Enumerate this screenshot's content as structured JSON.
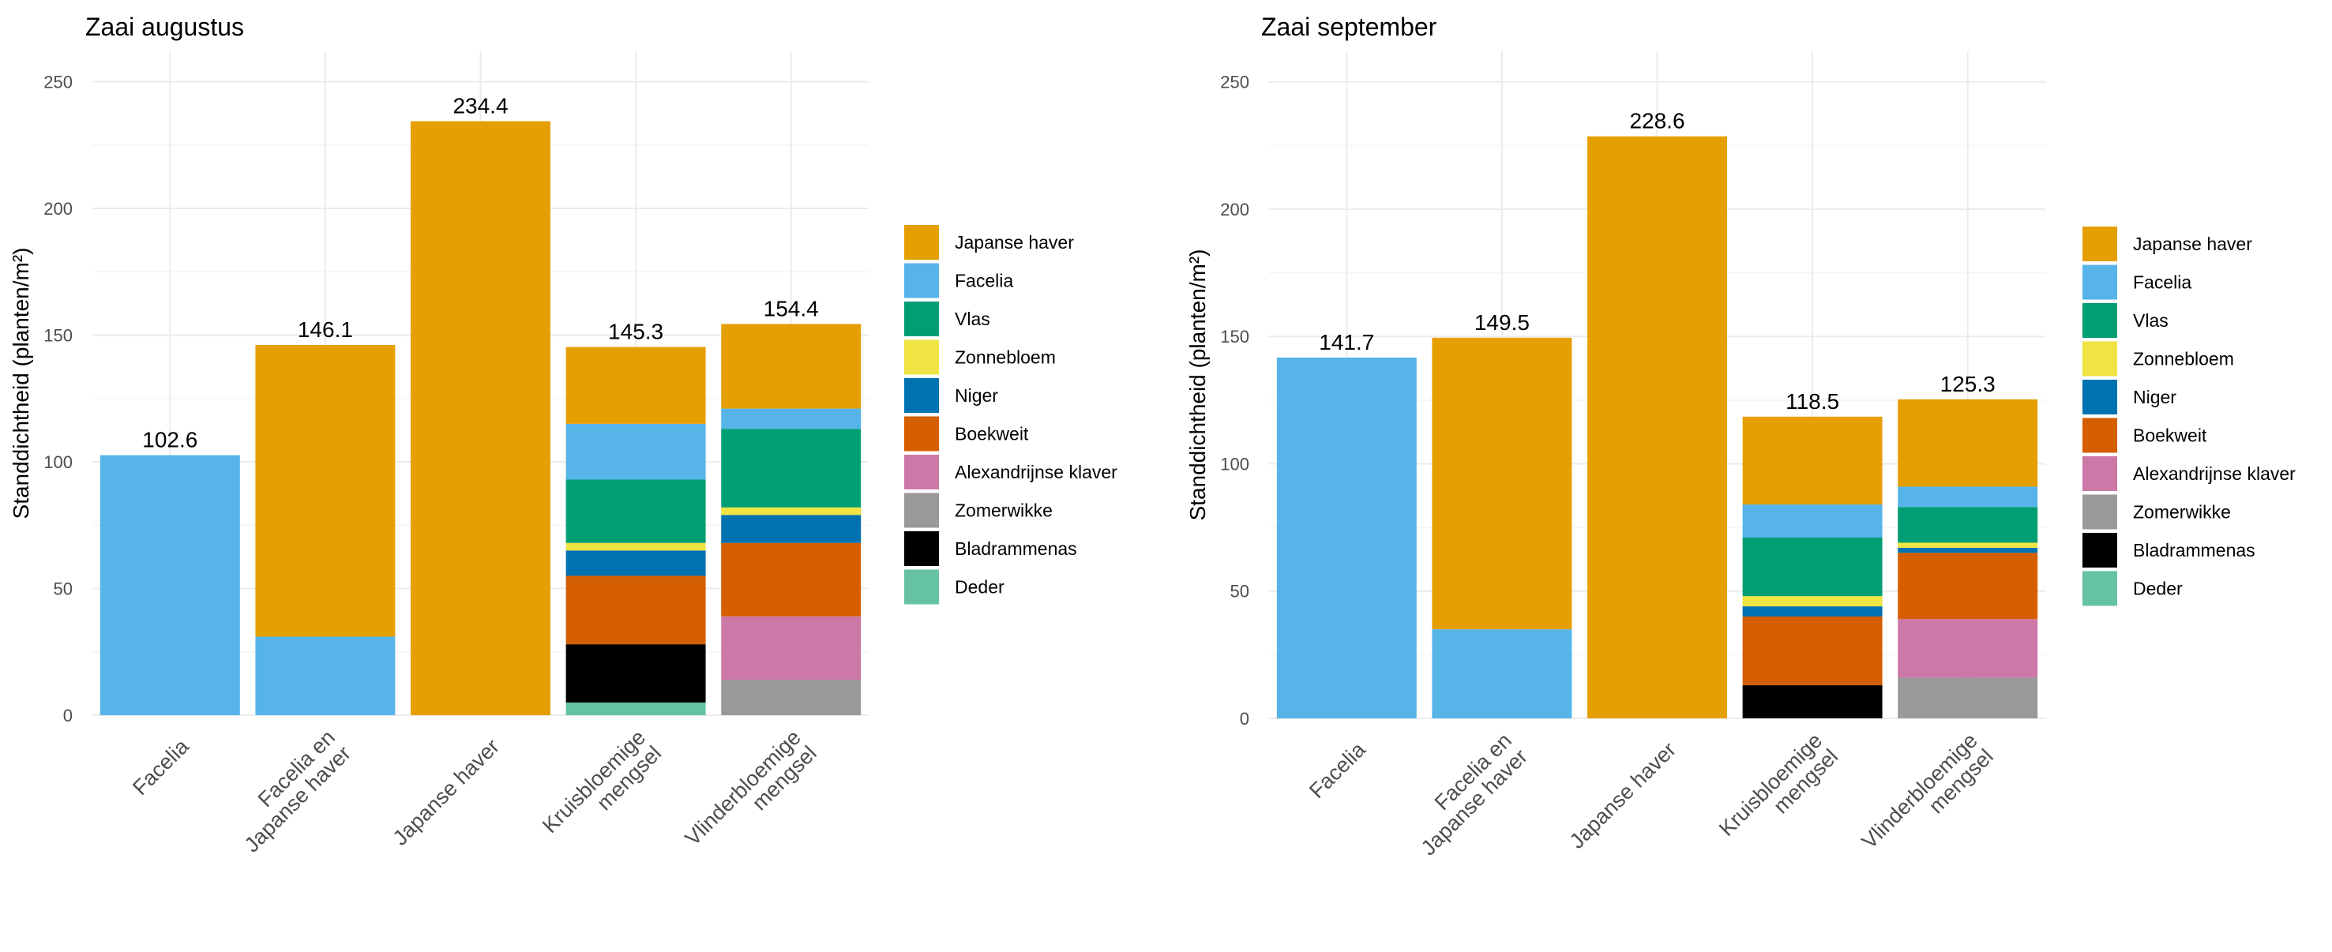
{
  "chart_data": [
    {
      "type": "bar",
      "stacked": true,
      "title": "Zaai augustus",
      "xlabel": "",
      "ylabel": "Standdichtheid (planten/m²)",
      "ylim": [
        0,
        262
      ],
      "yticks": [
        0,
        50,
        100,
        150,
        200,
        250
      ],
      "grid": true,
      "legend_position": "right",
      "categories": [
        [
          "Facelia"
        ],
        [
          "Facelia en",
          "Japanse haver"
        ],
        [
          "Japanse haver"
        ],
        [
          "Kruisbloemige",
          "mengsel"
        ],
        [
          "Vlinderbloemige",
          "mengsel"
        ]
      ],
      "totals": [
        "102.6",
        "146.1",
        "234.4",
        "145.3",
        "154.4"
      ],
      "series": [
        {
          "name": "Deder",
          "color": "#66C2A5",
          "values": [
            0,
            0,
            0,
            5,
            0
          ]
        },
        {
          "name": "Bladrammenas",
          "color": "#000000",
          "values": [
            0,
            0,
            0,
            23,
            0
          ]
        },
        {
          "name": "Zomerwikke",
          "color": "#999999",
          "values": [
            0,
            0,
            0,
            0,
            14
          ]
        },
        {
          "name": "Alexandrijnse klaver",
          "color": "#CC79A7",
          "values": [
            0,
            0,
            0,
            0,
            25
          ]
        },
        {
          "name": "Boekweit",
          "color": "#D55E00",
          "values": [
            0,
            0,
            0,
            27,
            29
          ]
        },
        {
          "name": "Niger",
          "color": "#0072B2",
          "values": [
            0,
            0,
            0,
            10,
            11
          ]
        },
        {
          "name": "Zonnebloem",
          "color": "#F0E442",
          "values": [
            0,
            0,
            0,
            3,
            3
          ]
        },
        {
          "name": "Vlas",
          "color": "#009E73",
          "values": [
            0,
            0,
            0,
            25,
            31
          ]
        },
        {
          "name": "Facelia",
          "color": "#56B4E9",
          "values": [
            102.6,
            31,
            0,
            22,
            8
          ]
        },
        {
          "name": "Japanse haver",
          "color": "#E69F00",
          "values": [
            0,
            115.1,
            234.4,
            30.3,
            33.4
          ]
        }
      ]
    },
    {
      "type": "bar",
      "stacked": true,
      "title": "Zaai september",
      "xlabel": "",
      "ylabel": "Standdichtheid (planten/m²)",
      "ylim": [
        0,
        262
      ],
      "yticks": [
        0,
        50,
        100,
        150,
        200,
        250
      ],
      "grid": true,
      "legend_position": "right",
      "categories": [
        [
          "Facelia"
        ],
        [
          "Facelia en",
          "Japanse haver"
        ],
        [
          "Japanse haver"
        ],
        [
          "Kruisbloemige",
          "mengsel"
        ],
        [
          "Vlinderbloemige",
          "mengsel"
        ]
      ],
      "totals": [
        "141.7",
        "149.5",
        "228.6",
        "118.5",
        "125.3"
      ],
      "series": [
        {
          "name": "Deder",
          "color": "#66C2A5",
          "values": [
            0,
            0,
            0,
            0,
            0
          ]
        },
        {
          "name": "Bladrammenas",
          "color": "#000000",
          "values": [
            0,
            0,
            0,
            13,
            0
          ]
        },
        {
          "name": "Zomerwikke",
          "color": "#999999",
          "values": [
            0,
            0,
            0,
            0,
            16
          ]
        },
        {
          "name": "Alexandrijnse klaver",
          "color": "#CC79A7",
          "values": [
            0,
            0,
            0,
            0,
            23
          ]
        },
        {
          "name": "Boekweit",
          "color": "#D55E00",
          "values": [
            0,
            0,
            0,
            27,
            26
          ]
        },
        {
          "name": "Niger",
          "color": "#0072B2",
          "values": [
            0,
            0,
            0,
            4,
            2
          ]
        },
        {
          "name": "Zonnebloem",
          "color": "#F0E442",
          "values": [
            0,
            0,
            0,
            4,
            2
          ]
        },
        {
          "name": "Vlas",
          "color": "#009E73",
          "values": [
            0,
            0,
            0,
            23,
            14
          ]
        },
        {
          "name": "Facelia",
          "color": "#56B4E9",
          "values": [
            141.7,
            35,
            0,
            13,
            8
          ]
        },
        {
          "name": "Japanse haver",
          "color": "#E69F00",
          "values": [
            0,
            114.5,
            228.6,
            34.5,
            34.3
          ]
        }
      ]
    }
  ],
  "legend": {
    "items": [
      {
        "name": "Japanse haver",
        "color": "#E69F00"
      },
      {
        "name": "Facelia",
        "color": "#56B4E9"
      },
      {
        "name": "Vlas",
        "color": "#009E73"
      },
      {
        "name": "Zonnebloem",
        "color": "#F0E442"
      },
      {
        "name": "Niger",
        "color": "#0072B2"
      },
      {
        "name": "Boekweit",
        "color": "#D55E00"
      },
      {
        "name": "Alexandrijnse klaver",
        "color": "#CC79A7"
      },
      {
        "name": "Zomerwikke",
        "color": "#999999"
      },
      {
        "name": "Bladrammenas",
        "color": "#000000"
      },
      {
        "name": "Deder",
        "color": "#66C2A5"
      }
    ]
  }
}
